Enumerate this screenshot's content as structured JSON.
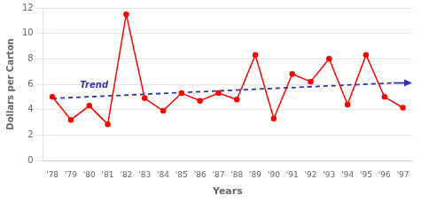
{
  "chart_data": {
    "type": "line",
    "x_label": "Years",
    "y_label": "Dollars per Carton",
    "categories": [
      "'78",
      "'79",
      "'80",
      "'81",
      "'82",
      "'83",
      "'84",
      "'85",
      "'86",
      "'87",
      "'88",
      "'89",
      "'90",
      "'91",
      "'92",
      "'93",
      "'94",
      "'95",
      "'96",
      "'97"
    ],
    "values": [
      5.0,
      3.2,
      4.3,
      2.85,
      11.5,
      4.9,
      3.9,
      5.3,
      4.7,
      5.3,
      4.8,
      8.3,
      3.3,
      6.8,
      6.2,
      8.0,
      4.4,
      8.3,
      5.0,
      4.15
    ],
    "color": "#FF0000",
    "marker": "circle",
    "ylim": [
      0,
      12
    ],
    "yticks": [
      0,
      2,
      4,
      6,
      8,
      10,
      12
    ],
    "grid": true,
    "annotations": [
      {
        "type": "trend_line",
        "text": "Trend",
        "start": 4.88,
        "end": 6.1,
        "color": "#3333AA",
        "line_style": "dashed"
      }
    ]
  }
}
